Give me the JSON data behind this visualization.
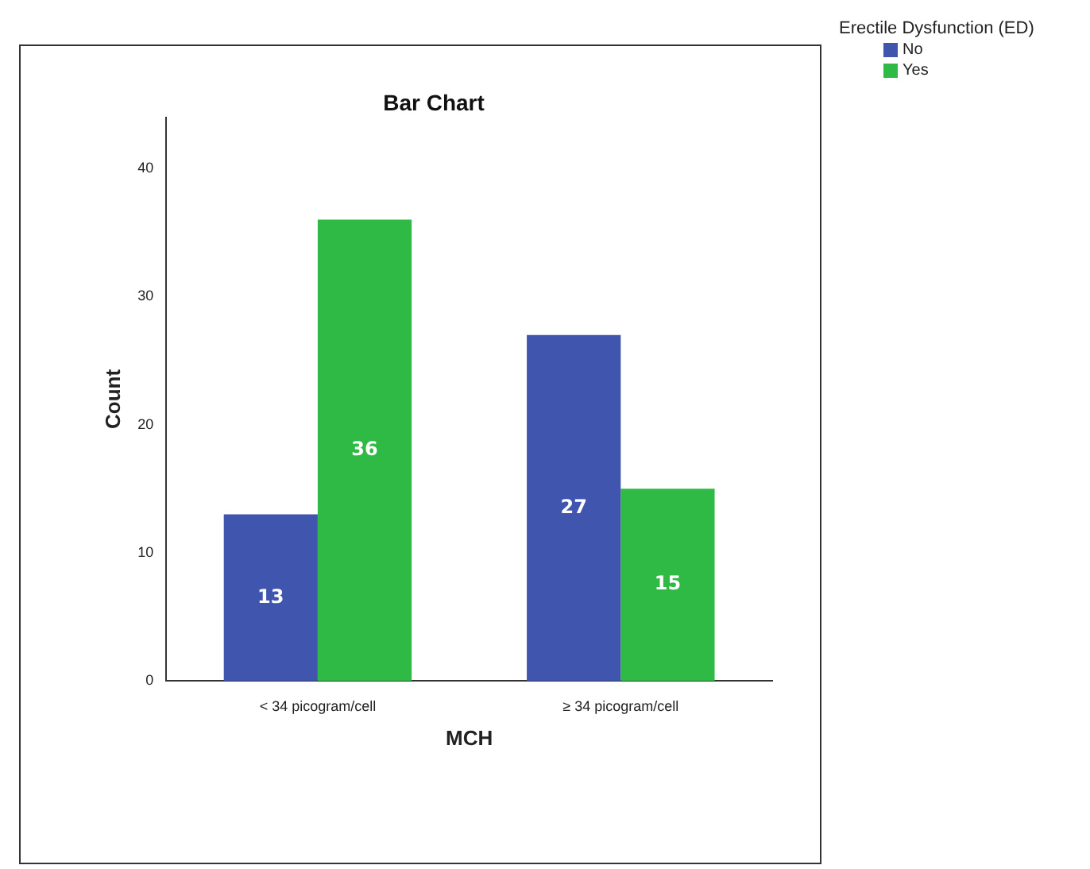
{
  "chart_data": {
    "type": "bar",
    "title": "Bar Chart",
    "xlabel": "MCH",
    "ylabel": "Count",
    "legend_title": "Erectile Dysfunction (ED)",
    "categories": [
      "< 34 picogram/cell",
      "≥ 34 picogram/cell"
    ],
    "series": [
      {
        "name": "No",
        "color": "#3f55ae",
        "values": [
          13,
          27
        ]
      },
      {
        "name": "Yes",
        "color": "#2fb945",
        "values": [
          36,
          15
        ]
      }
    ],
    "ylim": [
      0,
      44
    ],
    "yticks": [
      0,
      10,
      20,
      30,
      40
    ],
    "grid": false,
    "legend": "top right",
    "data_labels": true
  }
}
